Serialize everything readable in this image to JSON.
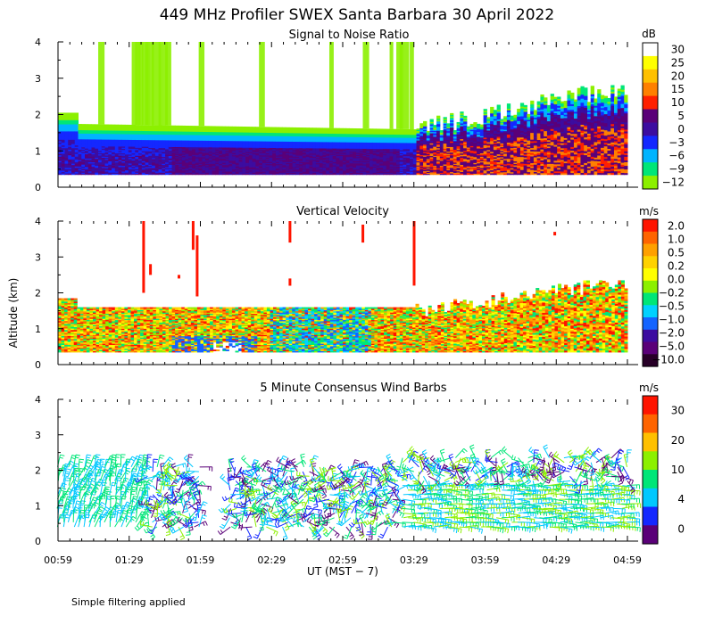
{
  "title": "449 MHz Profiler SWEX Santa Barbara 30 April 2022",
  "footnote": "Simple filtering applied",
  "shared_y_label": "Altitude (km)",
  "x_axis": {
    "label": "UT  (MST − 7)",
    "ticks": [
      "00:59",
      "01:29",
      "01:59",
      "02:29",
      "02:59",
      "03:29",
      "03:59",
      "04:29",
      "04:59"
    ]
  },
  "chart_data": [
    {
      "type": "heatmap",
      "title": "Signal to Noise Ratio",
      "ylabel": "Altitude (km)",
      "y_ticks": [
        "0",
        "1",
        "2",
        "3",
        "4"
      ],
      "ylim": [
        0,
        4
      ],
      "colorbar": {
        "unit": "dB",
        "labels": [
          "30",
          "25",
          "20",
          "15",
          "10",
          "5",
          "0",
          "−3",
          "−6",
          "−9",
          "−12"
        ],
        "colors": [
          "#ffffff",
          "#ffff00",
          "#ffc000",
          "#ff8000",
          "#ff2000",
          "#5a0078",
          "#3c0ca0",
          "#1428ff",
          "#00b4ff",
          "#00e678",
          "#8cf000"
        ]
      }
    },
    {
      "type": "heatmap",
      "title": "Vertical Velocity",
      "ylabel": "Altitude (km)",
      "y_ticks": [
        "0",
        "1",
        "2",
        "3",
        "4"
      ],
      "ylim": [
        0,
        4
      ],
      "colorbar": {
        "unit": "m/s",
        "labels": [
          "2.0",
          "1.0",
          "0.5",
          "0.2",
          "0.0",
          "−0.2",
          "−0.5",
          "−1.0",
          "−2.0",
          "−5.0",
          "−10.0"
        ],
        "colors": [
          "#ff1400",
          "#ff6400",
          "#ffa000",
          "#ffd200",
          "#ffff00",
          "#8cf000",
          "#00e678",
          "#00d2ff",
          "#1464ff",
          "#3c0ca0",
          "#5a0078",
          "#280028"
        ]
      }
    },
    {
      "type": "wind_barbs",
      "title": "5 Minute Consensus Wind Barbs",
      "ylabel": "Altitude (km)",
      "y_ticks": [
        "0",
        "1",
        "2",
        "3",
        "4"
      ],
      "ylim": [
        0,
        4
      ],
      "colorbar": {
        "unit": "m/s",
        "labels": [
          "30",
          "20",
          "10",
          "4",
          "0"
        ],
        "colors": [
          "#ff1400",
          "#ff6400",
          "#ffc000",
          "#8cf000",
          "#00e678",
          "#00c8ff",
          "#1428ff",
          "#5a0078"
        ]
      }
    }
  ]
}
